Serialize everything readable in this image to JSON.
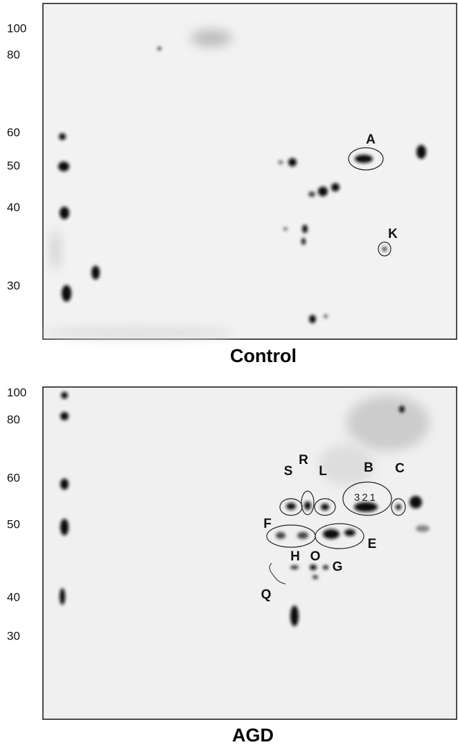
{
  "panels": [
    {
      "title": "Control",
      "mw_markers": [
        100,
        80,
        60,
        50,
        40,
        30
      ],
      "spot_labels": [
        "A",
        "K"
      ]
    },
    {
      "title": "AGD",
      "mw_markers": [
        100,
        80,
        60,
        50,
        40,
        30
      ],
      "spot_labels": [
        "B",
        "C",
        "S",
        "R",
        "L",
        "F",
        "E",
        "H",
        "O",
        "G",
        "Q"
      ],
      "spot_numbers": "321"
    }
  ]
}
